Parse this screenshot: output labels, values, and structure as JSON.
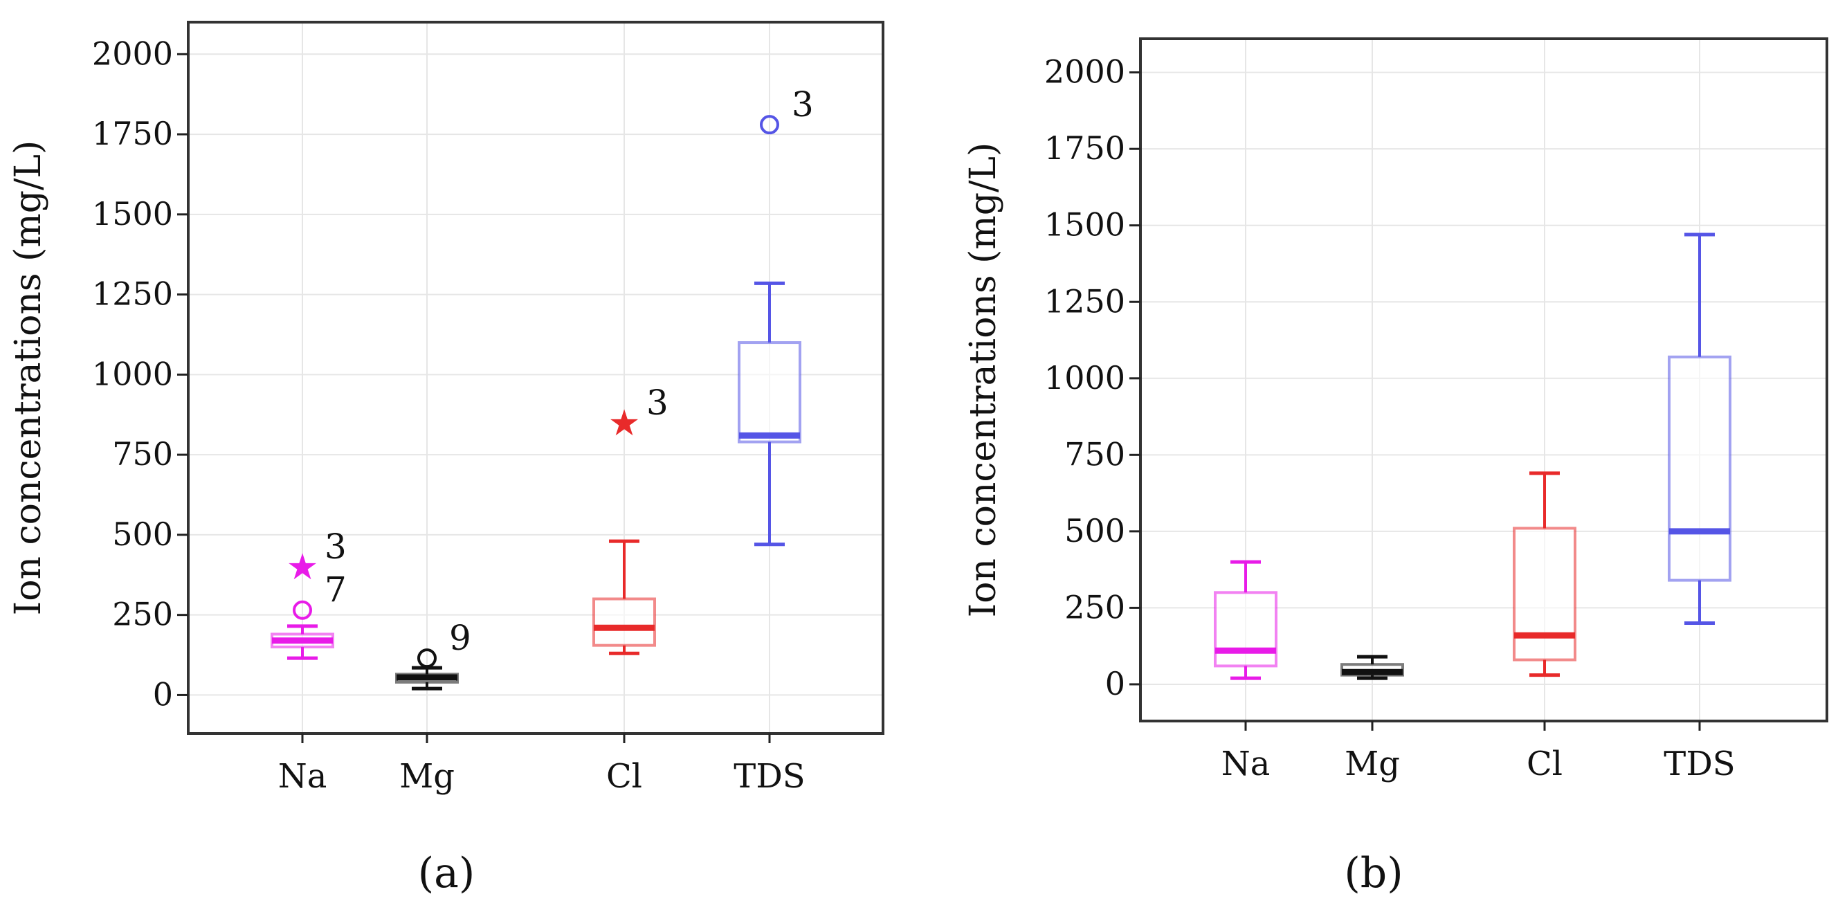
{
  "chart_data": [
    {
      "type": "boxplot",
      "panel_label": "(a)",
      "ylabel": "Ion concentrations (mg/L)",
      "ylim": [
        -120,
        2100
      ],
      "yticks": [
        0,
        250,
        500,
        750,
        1000,
        1250,
        1500,
        1750,
        2000
      ],
      "categories": [
        "Na",
        "Mg",
        "Cl",
        "TDS"
      ],
      "colors": [
        "#e81be8",
        "#111111",
        "#e82a2a",
        "#5555e6"
      ],
      "boxes": [
        {
          "name": "Na",
          "whisker_low": 115,
          "q1": 150,
          "median": 170,
          "q3": 190,
          "whisker_high": 215,
          "outliers": [
            {
              "value": 400,
              "marker": "star",
              "label": "3"
            },
            {
              "value": 265,
              "marker": "circle",
              "label": "7"
            }
          ]
        },
        {
          "name": "Mg",
          "whisker_low": 20,
          "q1": 40,
          "median": 55,
          "q3": 65,
          "whisker_high": 85,
          "outliers": [
            {
              "value": 115,
              "marker": "circle",
              "label": "9"
            }
          ]
        },
        {
          "name": "Cl",
          "whisker_low": 130,
          "q1": 155,
          "median": 210,
          "q3": 300,
          "whisker_high": 480,
          "outliers": [
            {
              "value": 850,
              "marker": "star",
              "label": "3"
            }
          ]
        },
        {
          "name": "TDS",
          "whisker_low": 470,
          "q1": 790,
          "median": 810,
          "q3": 1100,
          "whisker_high": 1285,
          "outliers": [
            {
              "value": 1780,
              "marker": "circle",
              "label": "3"
            }
          ]
        }
      ]
    },
    {
      "type": "boxplot",
      "panel_label": "(b)",
      "ylabel": "Ion concentrations (mg/L)",
      "ylim": [
        -120,
        2110
      ],
      "yticks": [
        0,
        250,
        500,
        750,
        1000,
        1250,
        1500,
        1750,
        2000
      ],
      "categories": [
        "Na",
        "Mg",
        "Cl",
        "TDS"
      ],
      "colors": [
        "#e81be8",
        "#111111",
        "#e82a2a",
        "#5555e6"
      ],
      "boxes": [
        {
          "name": "Na",
          "whisker_low": 20,
          "q1": 60,
          "median": 110,
          "q3": 300,
          "whisker_high": 400,
          "outliers": []
        },
        {
          "name": "Mg",
          "whisker_low": 20,
          "q1": 30,
          "median": 40,
          "q3": 65,
          "whisker_high": 90,
          "outliers": []
        },
        {
          "name": "Cl",
          "whisker_low": 30,
          "q1": 80,
          "median": 160,
          "q3": 510,
          "whisker_high": 690,
          "outliers": []
        },
        {
          "name": "TDS",
          "whisker_low": 200,
          "q1": 340,
          "median": 500,
          "q3": 1070,
          "whisker_high": 1470,
          "outliers": []
        }
      ]
    }
  ]
}
